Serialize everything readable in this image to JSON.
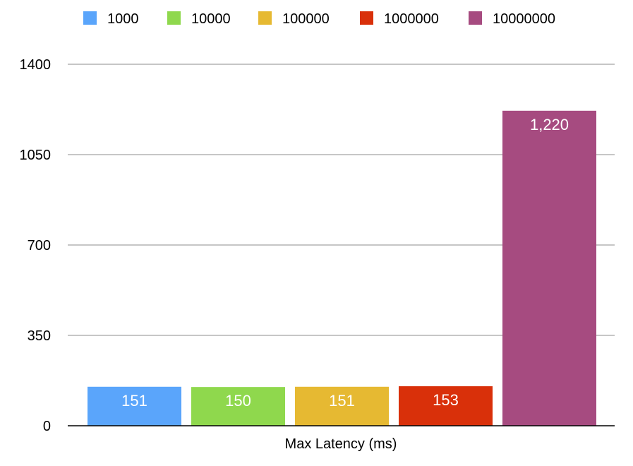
{
  "chart_data": {
    "type": "bar",
    "title": "",
    "xlabel": "",
    "ylabel": "",
    "categories": [
      "Max Latency (ms)"
    ],
    "series": [
      {
        "name": "1000",
        "values": [
          151
        ],
        "color": "#5aa5fb",
        "label": "151"
      },
      {
        "name": "10000",
        "values": [
          150
        ],
        "color": "#8fd84d",
        "label": "150"
      },
      {
        "name": "100000",
        "values": [
          151
        ],
        "color": "#e6b932",
        "label": "151"
      },
      {
        "name": "1000000",
        "values": [
          153
        ],
        "color": "#d9300a",
        "label": "153"
      },
      {
        "name": "10000000",
        "values": [
          1220
        ],
        "color": "#a64b80",
        "label": "1,220"
      }
    ],
    "ylim": [
      0,
      1400
    ],
    "yticks": [
      0,
      350,
      700,
      1050,
      1400
    ],
    "ytick_labels": [
      "0",
      "350",
      "700",
      "1050",
      "1400"
    ],
    "grid": true,
    "legend_position": "top"
  }
}
